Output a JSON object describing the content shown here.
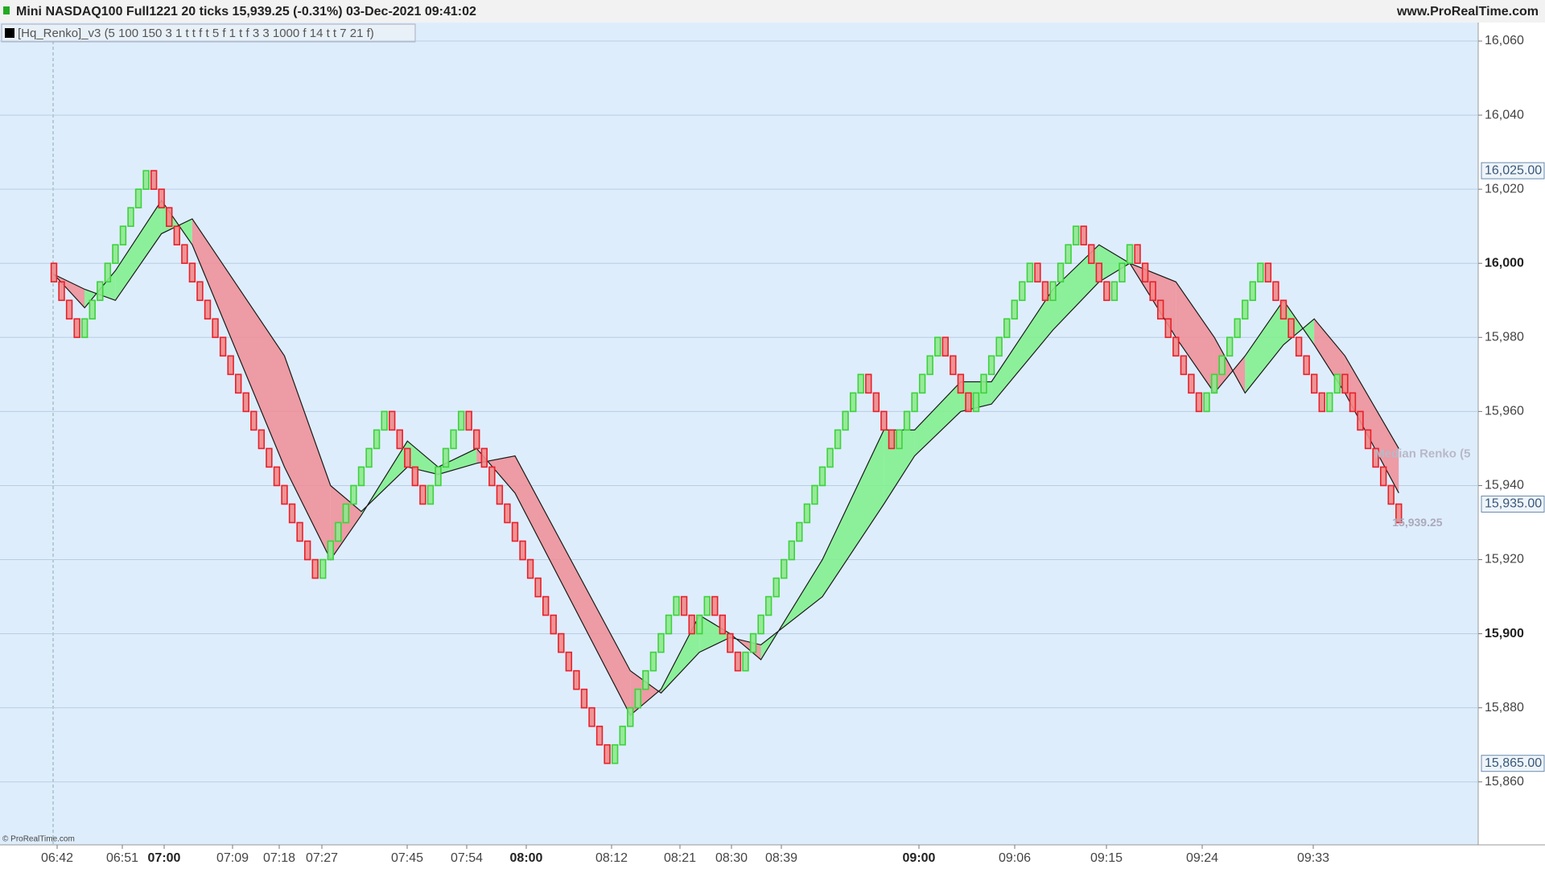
{
  "chart_data": {
    "type": "renko",
    "title": "Mini NASDAQ100 Full1221 20 ticks 15,939.25 (-0.31%) 03-Dec-2021 09:41:02",
    "site": "www.ProRealTime.com",
    "indicator": "[Hq_Renko]_v3 (5 100 150 3 1 t t f t 5 f 1 t f 3 3 1000 f 14 t t 7 21 f)",
    "copyright": "© ProRealTime.com",
    "median_label": "Median Renko (5",
    "last_label": "15,939.25",
    "up_color": "#3cd23c",
    "down_color": "#e8202a",
    "bricks": [
      15995,
      15990,
      15985,
      15980,
      15985,
      15990,
      15995,
      16000,
      16005,
      16010,
      16015,
      16020,
      16025,
      16020,
      16015,
      16010,
      16005,
      16000,
      15995,
      15990,
      15985,
      15980,
      15975,
      15970,
      15965,
      15960,
      15955,
      15950,
      15945,
      15940,
      15935,
      15930,
      15925,
      15920,
      15915,
      15920,
      15925,
      15930,
      15935,
      15940,
      15945,
      15950,
      15955,
      15960,
      15955,
      15950,
      15945,
      15940,
      15935,
      15940,
      15945,
      15950,
      15955,
      15960,
      15955,
      15950,
      15945,
      15940,
      15935,
      15930,
      15925,
      15920,
      15915,
      15910,
      15905,
      15900,
      15895,
      15890,
      15885,
      15880,
      15875,
      15870,
      15865,
      15870,
      15875,
      15880,
      15885,
      15890,
      15895,
      15900,
      15905,
      15910,
      15905,
      15900,
      15905,
      15910,
      15905,
      15900,
      15895,
      15890,
      15895,
      15900,
      15905,
      15910,
      15915,
      15920,
      15925,
      15930,
      15935,
      15940,
      15945,
      15950,
      15955,
      15960,
      15965,
      15970,
      15965,
      15960,
      15955,
      15950,
      15955,
      15960,
      15965,
      15970,
      15975,
      15980,
      15975,
      15970,
      15965,
      15960,
      15965,
      15970,
      15975,
      15980,
      15985,
      15990,
      15995,
      16000,
      15995,
      15990,
      15995,
      16000,
      16005,
      16010,
      16005,
      16000,
      15995,
      15990,
      15995,
      16000,
      16005,
      16000,
      15995,
      15990,
      15985,
      15980,
      15975,
      15970,
      15965,
      15960,
      15965,
      15970,
      15975,
      15980,
      15985,
      15990,
      15995,
      16000,
      15995,
      15990,
      15985,
      15980,
      15975,
      15970,
      15965,
      15960,
      15965,
      15970,
      15965,
      15960,
      15955,
      15950,
      15945,
      15940,
      15935,
      15930
    ],
    "band": {
      "x": [
        0,
        4,
        8,
        14,
        18,
        30,
        36,
        40,
        46,
        50,
        55,
        60,
        75,
        79,
        84,
        88,
        92,
        100,
        108,
        112,
        118,
        122,
        130,
        136,
        140,
        146,
        151,
        155,
        160,
        164,
        168,
        175
      ],
      "fast": [
        15997,
        15988,
        15998,
        16017,
        16005,
        15945,
        15920,
        15932,
        15952,
        15945,
        15950,
        15938,
        15878,
        15885,
        15905,
        15900,
        15893,
        15920,
        15955,
        15955,
        15968,
        15968,
        15993,
        16005,
        16000,
        15980,
        15965,
        15975,
        15990,
        15978,
        15965,
        15938
      ],
      "slow": [
        15997,
        15993,
        15990,
        16008,
        16012,
        15975,
        15940,
        15933,
        15945,
        15943,
        15946,
        15948,
        15890,
        15884,
        15895,
        15899,
        15897,
        15910,
        15935,
        15948,
        15960,
        15962,
        15982,
        15995,
        16000,
        15995,
        15980,
        15965,
        15978,
        15985,
        15975,
        15950
      ],
      "up_fill": "#7ef08a",
      "down_fill": "#f08c94"
    },
    "ylim": [
      15843,
      16065
    ],
    "yticks": [
      {
        "value": 15860,
        "label": "15,860"
      },
      {
        "value": 15880,
        "label": "15,880"
      },
      {
        "value": 15900,
        "label": "15,900"
      },
      {
        "value": 15920,
        "label": "15,920"
      },
      {
        "value": 15940,
        "label": "15,940"
      },
      {
        "value": 15960,
        "label": "15,960"
      },
      {
        "value": 15980,
        "label": "15,980"
      },
      {
        "value": 16000,
        "label": "16,000"
      },
      {
        "value": 16020,
        "label": "16,020"
      },
      {
        "value": 16040,
        "label": "16,040"
      },
      {
        "value": 16060,
        "label": "16,060"
      }
    ],
    "markers": [
      {
        "value": 16025,
        "label": "16,025.00"
      },
      {
        "value": 15935,
        "label": "15,935.00"
      },
      {
        "value": 15865,
        "label": "15,865.00"
      }
    ],
    "xlabels": [
      "06:42",
      "06:51",
      "07:00",
      "07:09",
      "07:18",
      "07:27",
      "07:45",
      "07:54",
      "08:00",
      "08:12",
      "08:21",
      "08:30",
      "08:39",
      "09:00",
      "09:06",
      "09:15",
      "09:24",
      "09:33"
    ],
    "grid": true
  }
}
